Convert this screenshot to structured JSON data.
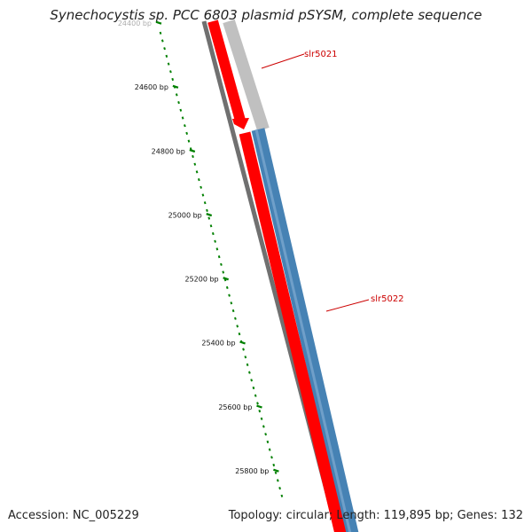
{
  "title": "Synechocystis sp. PCC 6803 plasmid pSYSM, complete sequence",
  "footer": {
    "accession": "Accession: NC_005229",
    "info": "Topology: circular; Length: 119,895 bp; Genes: 132"
  },
  "map": {
    "scale_ticks": [
      {
        "bp": 24400,
        "label": "24400 bp"
      },
      {
        "bp": 24600,
        "label": "24600 bp"
      },
      {
        "bp": 24800,
        "label": "24800 bp"
      },
      {
        "bp": 25000,
        "label": "25000 bp"
      },
      {
        "bp": 25200,
        "label": "25200 bp"
      },
      {
        "bp": 25400,
        "label": "25400 bp"
      },
      {
        "bp": 25600,
        "label": "25600 bp"
      },
      {
        "bp": 25800,
        "label": "25800 bp"
      }
    ],
    "genes": [
      {
        "name": "slr5021",
        "color": "#ff0000",
        "strand_color": "#c0c0c0"
      },
      {
        "name": "slr5022",
        "color": "#ff0000",
        "strand_color": "#4682b4"
      }
    ],
    "colors": {
      "backbone": "#707070",
      "orf_forward": "#ff0000",
      "slr5021_track": "#c0c0c0",
      "slr5022_track": "#4682b4",
      "scale_ticks": "#008000",
      "labels": "#cc0000"
    }
  }
}
